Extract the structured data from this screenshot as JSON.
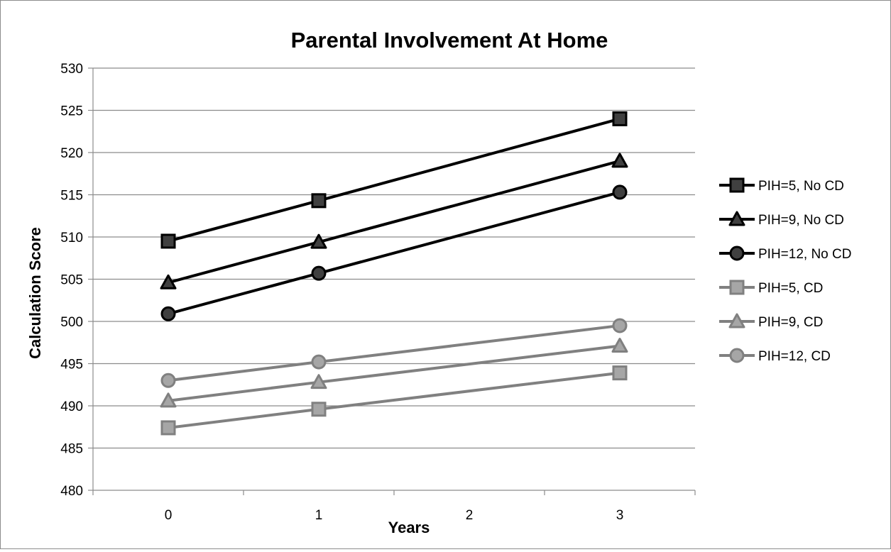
{
  "chart_data": {
    "type": "line",
    "title": "Parental Involvement At Home",
    "xlabel": "Years",
    "ylabel": "Calculation Score",
    "categories": [
      "0",
      "1",
      "2",
      "3"
    ],
    "ylim": [
      480,
      530
    ],
    "yticks": [
      "480",
      "485",
      "490",
      "495",
      "500",
      "505",
      "510",
      "515",
      "520",
      "525",
      "530"
    ],
    "grid": "horizontal",
    "legend_position": "right",
    "series": [
      {
        "name": "PIH=5, No CD",
        "x": [
          0,
          1,
          3
        ],
        "values": [
          509.5,
          514.3,
          524.0
        ],
        "color": "#000000",
        "marker": "square"
      },
      {
        "name": "PIH=9, No CD",
        "x": [
          0,
          1,
          3
        ],
        "values": [
          504.6,
          509.4,
          519.0
        ],
        "color": "#000000",
        "marker": "triangle"
      },
      {
        "name": "PIH=12, No CD",
        "x": [
          0,
          1,
          3
        ],
        "values": [
          500.9,
          505.7,
          515.3
        ],
        "color": "#000000",
        "marker": "circle"
      },
      {
        "name": "PIH=5, CD",
        "x": [
          0,
          1,
          3
        ],
        "values": [
          487.4,
          489.6,
          493.9
        ],
        "color": "#808080",
        "marker": "square"
      },
      {
        "name": "PIH=9, CD",
        "x": [
          0,
          1,
          3
        ],
        "values": [
          490.6,
          492.8,
          497.1
        ],
        "color": "#808080",
        "marker": "triangle"
      },
      {
        "name": "PIH=12, CD",
        "x": [
          0,
          1,
          3
        ],
        "values": [
          493.0,
          495.2,
          499.5
        ],
        "color": "#808080",
        "marker": "circle"
      }
    ]
  }
}
